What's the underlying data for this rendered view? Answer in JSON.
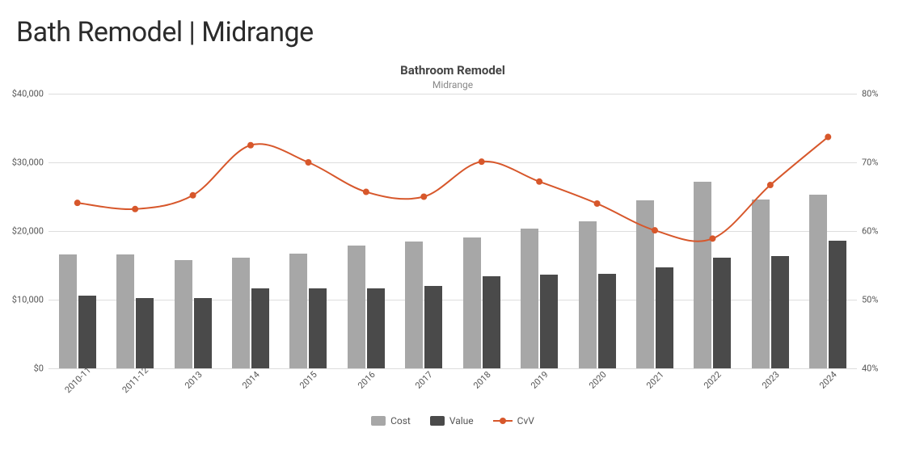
{
  "page_title": "Bath Remodel | Midrange",
  "chart": {
    "type": "bar+line",
    "title": "Bathroom Remodel",
    "subtitle": "Midrange",
    "background_color": "#ffffff",
    "grid_color": "#dddddd",
    "axis_label_color": "#555555",
    "title_color": "#444444",
    "title_fontsize": 15,
    "subtitle_color": "#888888",
    "subtitle_fontsize": 12,
    "axis_fontsize": 11,
    "categories": [
      "2010-11",
      "2011-12",
      "2013",
      "2014",
      "2015",
      "2016",
      "2017",
      "2018",
      "2019",
      "2020",
      "2021",
      "2022",
      "2023",
      "2024"
    ],
    "y_left": {
      "min": 0,
      "max": 40000,
      "ticks": [
        0,
        10000,
        20000,
        30000,
        40000
      ],
      "prefix": "$"
    },
    "y_right": {
      "min": 40,
      "max": 80,
      "ticks": [
        40,
        50,
        60,
        70,
        80
      ],
      "suffix": "%"
    },
    "series_bar": [
      {
        "name": "Cost",
        "color": "#a7a7a7",
        "values": [
          16600,
          16600,
          15800,
          16100,
          16700,
          17900,
          18500,
          19100,
          20400,
          21400,
          24500,
          27200,
          24600,
          25300
        ]
      },
      {
        "name": "Value",
        "color": "#4a4a4a",
        "values": [
          10600,
          10200,
          10200,
          11600,
          11700,
          11700,
          12000,
          13400,
          13700,
          13800,
          14700,
          16100,
          16400,
          18600
        ]
      }
    ],
    "series_line": {
      "name": "CvV",
      "color": "#d7572b",
      "line_width": 2,
      "marker_radius": 4,
      "values": [
        64.1,
        63.2,
        65.2,
        72.5,
        70.0,
        65.7,
        65.0,
        70.1,
        67.2,
        64.0,
        60.1,
        58.9,
        66.7,
        73.7
      ]
    },
    "legend": {
      "items": [
        {
          "label": "Cost",
          "kind": "bar",
          "color": "#a7a7a7"
        },
        {
          "label": "Value",
          "kind": "bar",
          "color": "#4a4a4a"
        },
        {
          "label": "CvV",
          "kind": "line",
          "color": "#d7572b"
        }
      ]
    }
  }
}
